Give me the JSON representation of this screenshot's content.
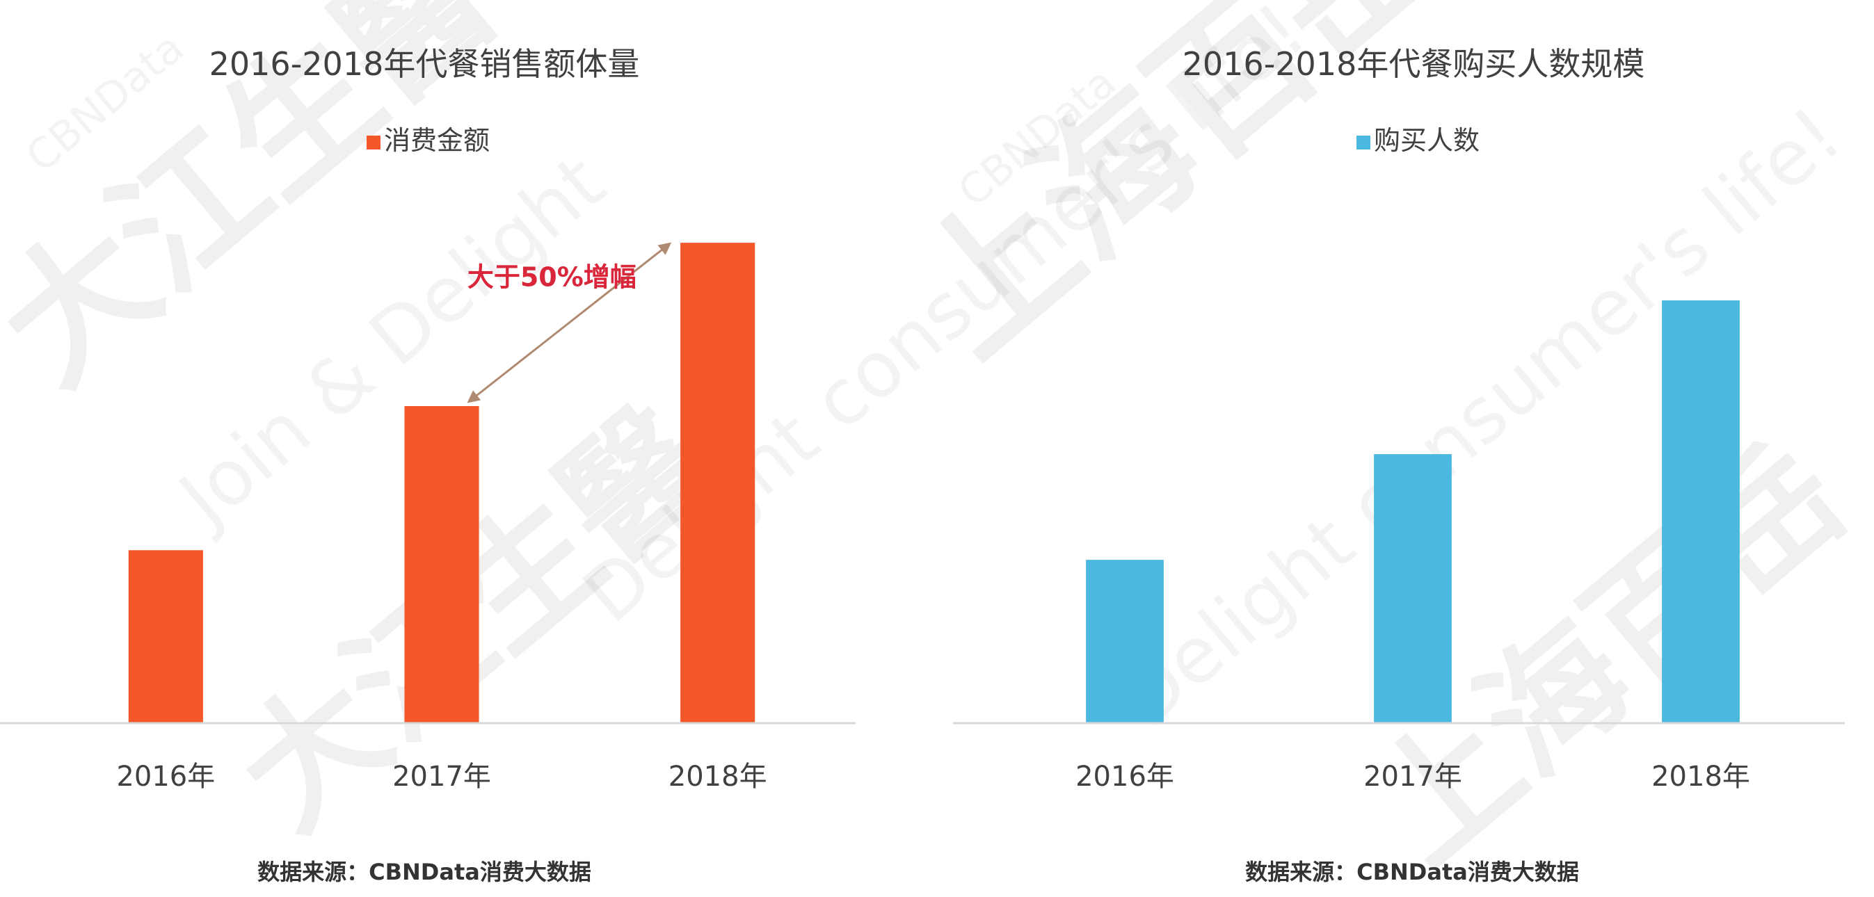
{
  "chart_data": [
    {
      "type": "bar",
      "title": "2016-2018年代餐销售额体量",
      "categories": [
        "2016年",
        "2017年",
        "2018年"
      ],
      "series": [
        {
          "name": "消费金额",
          "values": [
            36,
            66,
            100
          ]
        }
      ],
      "color": "#F4572A",
      "ylim": [
        0,
        110
      ],
      "grid": false,
      "legend": "top-center",
      "annotation": "大于50%增幅",
      "annotation_color": "#D9263A",
      "source": "数据来源：CBNData消费大数据"
    },
    {
      "type": "bar",
      "title": "2016-2018年代餐购买人数规模",
      "categories": [
        "2016年",
        "2017年",
        "2018年"
      ],
      "series": [
        {
          "name": "购买人数",
          "values": [
            34,
            56,
            88
          ]
        }
      ],
      "color": "#4BB8DF",
      "ylim": [
        0,
        110
      ],
      "grid": false,
      "legend": "top-center",
      "source": "数据来源：CBNData消费大数据"
    }
  ],
  "watermarks": [
    "大江生醫",
    "上海百岳",
    "Join & Delight",
    "Delight consumer's life!",
    "CBNData"
  ],
  "colors": {
    "axis": "#D9D9D9",
    "text": "#404040",
    "arrow": "#B08A70"
  }
}
